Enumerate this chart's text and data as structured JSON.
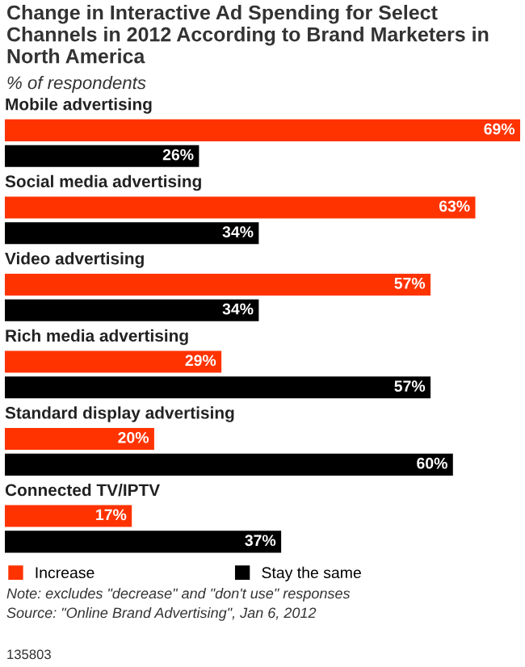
{
  "chart_data": {
    "type": "bar",
    "orientation": "horizontal",
    "title": "Change in Interactive Ad Spending for Select Channels in 2012 According to Brand Marketers in North America",
    "subtitle": "% of respondents",
    "categories": [
      "Mobile advertising",
      "Social media advertising",
      "Video advertising",
      "Rich media advertising",
      "Standard display advertising",
      "Connected TV/IPTV"
    ],
    "series": [
      {
        "name": "Increase",
        "color": "#ff3300",
        "values": [
          69,
          63,
          57,
          29,
          20,
          17
        ],
        "value_labels": [
          "69%",
          "63%",
          "57%",
          "29%",
          "20%",
          "17%"
        ]
      },
      {
        "name": "Stay the same",
        "color": "#000000",
        "values": [
          26,
          34,
          34,
          57,
          60,
          37
        ],
        "value_labels": [
          "26%",
          "34%",
          "34%",
          "57%",
          "60%",
          "37%"
        ]
      }
    ],
    "legend": "bottom",
    "annotations": [
      "Note: excludes \"decrease\" and \"don't use\" responses",
      "Source: \"Online Brand Advertising\", Jan 6, 2012",
      "135803"
    ]
  }
}
